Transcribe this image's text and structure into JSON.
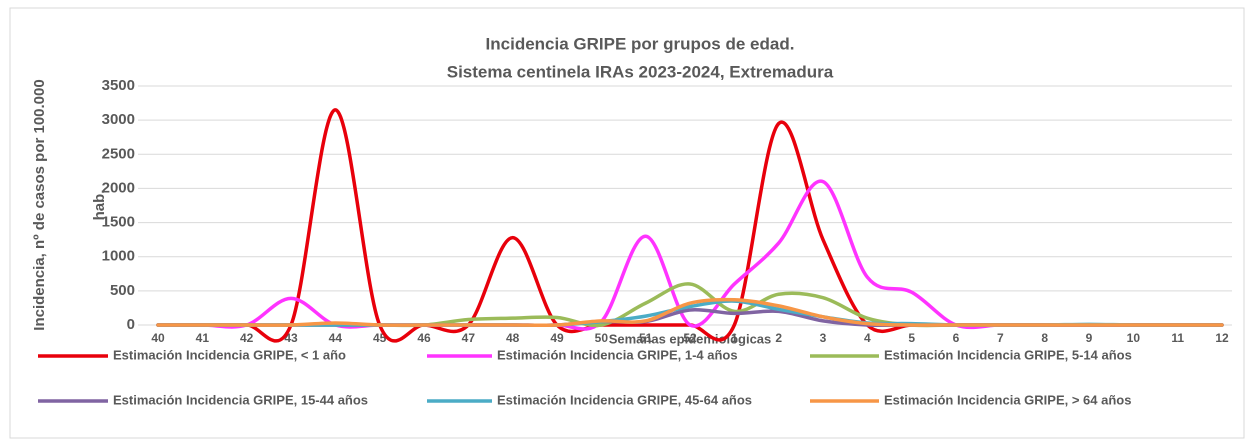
{
  "chart_data": {
    "type": "line",
    "title": [
      "Incidencia GRIPE por grupos de edad.",
      "Sistema centinela IRAs 2023-2024, Extremadura"
    ],
    "x_label": "Semanas epidemiológicas",
    "y_label": [
      "Incidencia, nº de casos por 100.000",
      "hab."
    ],
    "categories": [
      "40",
      "41",
      "42",
      "43",
      "44",
      "45",
      "46",
      "47",
      "48",
      "49",
      "50",
      "51",
      "52",
      "1",
      "2",
      "3",
      "4",
      "5",
      "6",
      "7",
      "8",
      "9",
      "10",
      "11",
      "12"
    ],
    "ylim": [
      0,
      3500
    ],
    "yticks": [
      0,
      500,
      1000,
      1500,
      2000,
      2500,
      3000,
      3500
    ],
    "grid": true,
    "legend": "bottom",
    "series": [
      {
        "name": "Estimación Incidencia GRIPE, < 1 año",
        "color": "#e8000b",
        "values": [
          0,
          0,
          0,
          0,
          3150,
          0,
          0,
          0,
          1280,
          0,
          0,
          0,
          0,
          0,
          2950,
          1250,
          0,
          0,
          0,
          0,
          0,
          0,
          0,
          0,
          0
        ]
      },
      {
        "name": "Estimación Incidencia GRIPE, 1-4 años",
        "color": "#ff33ff",
        "values": [
          0,
          0,
          0,
          390,
          0,
          0,
          0,
          0,
          0,
          0,
          50,
          1300,
          0,
          600,
          1200,
          2100,
          700,
          480,
          0,
          0,
          0,
          0,
          0,
          0,
          0
        ]
      },
      {
        "name": "Estimación Incidencia GRIPE, 5-14 años",
        "color": "#9bbb59",
        "values": [
          0,
          0,
          0,
          0,
          0,
          0,
          0,
          80,
          100,
          110,
          0,
          320,
          600,
          200,
          450,
          400,
          100,
          0,
          0,
          0,
          0,
          0,
          0,
          0,
          0
        ]
      },
      {
        "name": "Estimación Incidencia GRIPE, 15-44 años",
        "color": "#8064a2",
        "values": [
          0,
          0,
          0,
          0,
          0,
          0,
          0,
          0,
          0,
          0,
          50,
          50,
          220,
          170,
          200,
          60,
          0,
          0,
          0,
          0,
          0,
          0,
          0,
          0,
          0
        ]
      },
      {
        "name": "Estimación Incidencia GRIPE, 45-64 años",
        "color": "#4bacc6",
        "values": [
          0,
          0,
          0,
          0,
          0,
          0,
          0,
          0,
          0,
          0,
          50,
          130,
          270,
          350,
          230,
          120,
          30,
          20,
          0,
          0,
          0,
          10,
          0,
          0,
          0
        ]
      },
      {
        "name": "Estimación Incidencia GRIPE, > 64 años",
        "color": "#f79646",
        "values": [
          0,
          0,
          0,
          0,
          30,
          0,
          0,
          0,
          0,
          0,
          60,
          60,
          320,
          370,
          280,
          120,
          20,
          0,
          0,
          0,
          0,
          0,
          0,
          0,
          0
        ]
      }
    ]
  }
}
